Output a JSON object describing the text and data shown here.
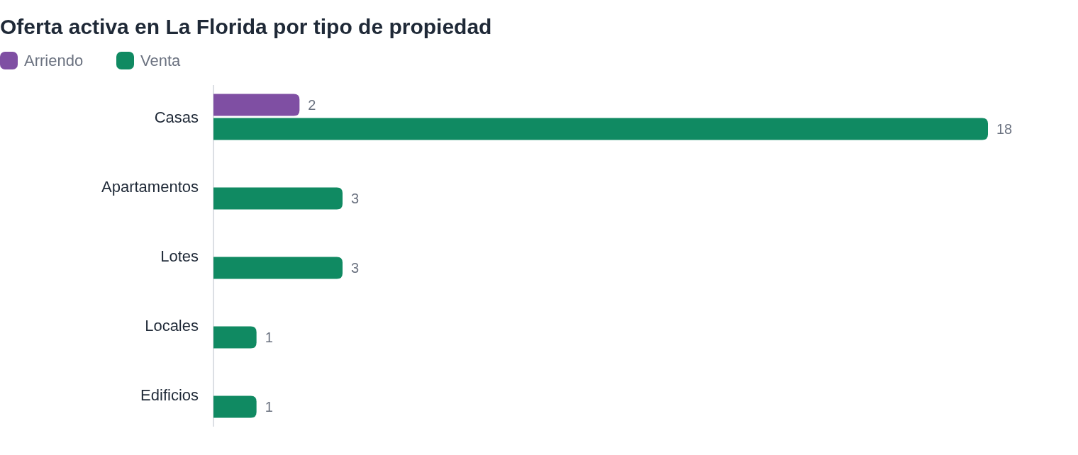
{
  "chart_data": {
    "type": "bar",
    "orientation": "horizontal",
    "title": "Oferta activa en La Florida por tipo de propiedad",
    "categories": [
      "Casas",
      "Apartamentos",
      "Lotes",
      "Locales",
      "Edificios"
    ],
    "series": [
      {
        "name": "Arriendo",
        "color": "#7f4fa3",
        "values": [
          2,
          null,
          null,
          null,
          null
        ]
      },
      {
        "name": "Venta",
        "color": "#108a62",
        "values": [
          18,
          3,
          3,
          1,
          1
        ]
      }
    ],
    "data_labels": true,
    "legend": "top left"
  }
}
